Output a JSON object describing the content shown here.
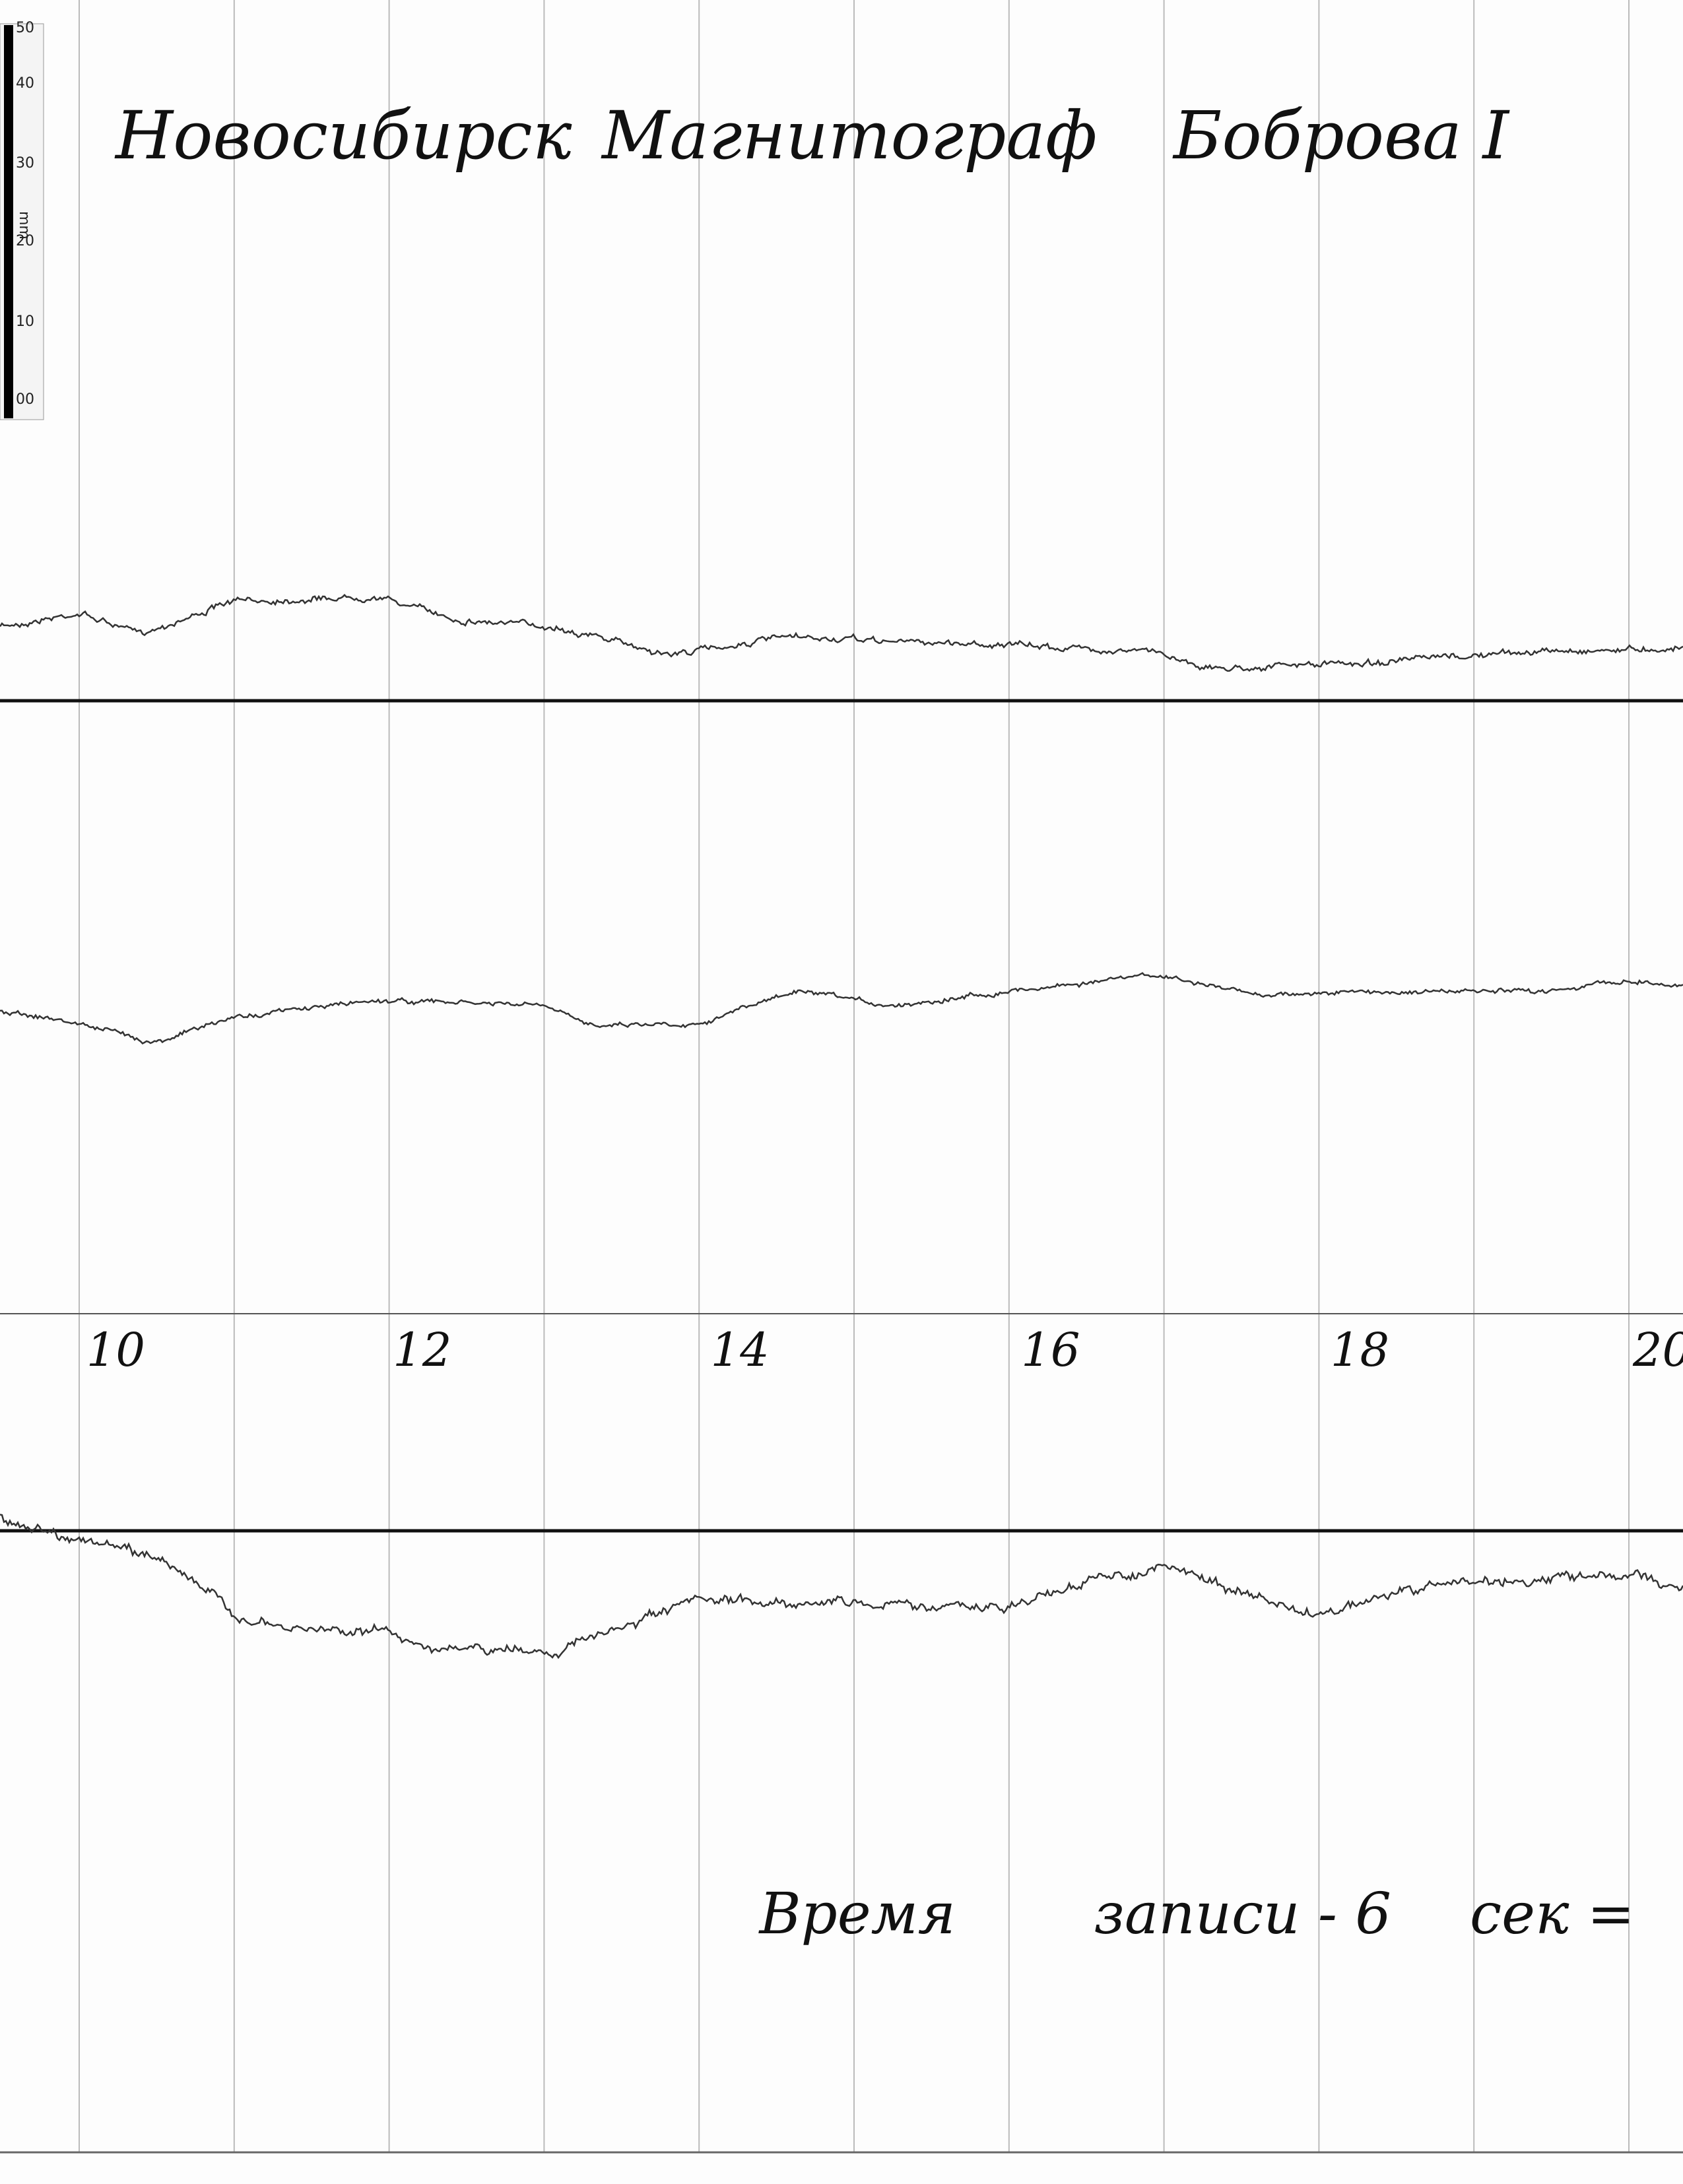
{
  "ruler": {
    "labels": [
      "50",
      "40",
      "30",
      "20",
      "10",
      "00"
    ],
    "unit": "mm"
  },
  "header": {
    "city": "Новосибирск",
    "instrument": "Магнитограф",
    "observer": "Боброва I"
  },
  "hour_labels": [
    "10",
    "12",
    "14",
    "16",
    "18",
    "20"
  ],
  "footer": {
    "words": [
      "Время",
      "записи - 6",
      "сек ="
    ]
  }
}
